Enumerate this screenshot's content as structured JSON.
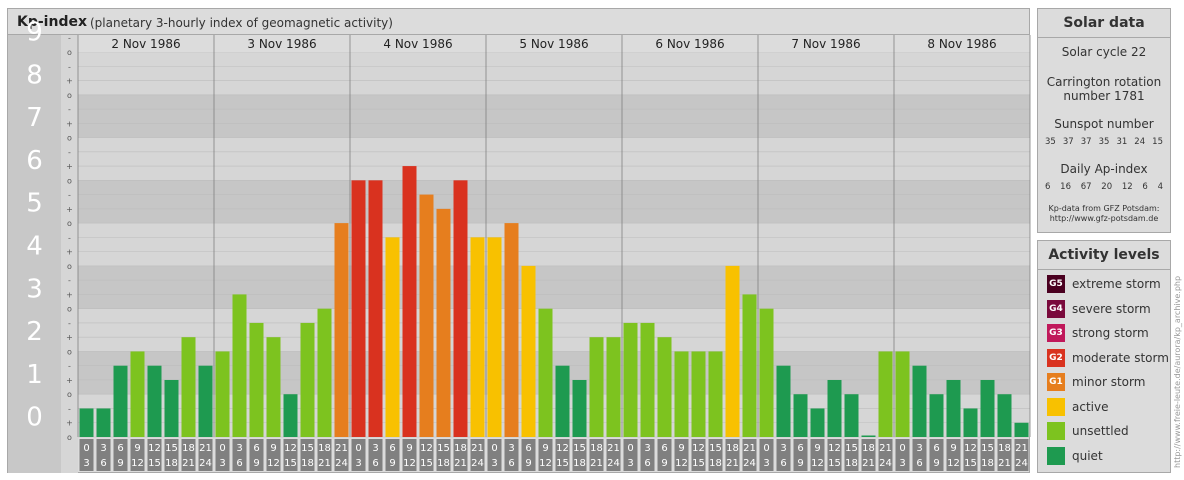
{
  "header": {
    "title": "Kp-index",
    "subtitle": "(planetary 3-hourly index of geomagnetic activity)"
  },
  "chart_data": {
    "type": "bar",
    "ylim": [
      0,
      9
    ],
    "y_ticks": [
      "0",
      "1",
      "2",
      "3",
      "4",
      "5",
      "6",
      "7",
      "8",
      "9"
    ],
    "sub_ticks": [
      "o",
      "-",
      "+"
    ],
    "days": [
      "2 Nov 1986",
      "3 Nov 1986",
      "4 Nov 1986",
      "5 Nov 1986",
      "6 Nov 1986",
      "7 Nov 1986",
      "8 Nov 1986"
    ],
    "interval_start": [
      "0",
      "3",
      "6",
      "9",
      "12",
      "15",
      "18",
      "21"
    ],
    "interval_end": [
      "3",
      "6",
      "9",
      "12",
      "15",
      "18",
      "21",
      "24"
    ],
    "values": [
      0.667,
      0.667,
      1.667,
      2.0,
      1.667,
      1.333,
      2.333,
      1.667,
      2.0,
      3.333,
      2.667,
      2.333,
      1.0,
      2.667,
      3.0,
      5.0,
      6.0,
      6.0,
      4.667,
      6.333,
      5.667,
      5.333,
      6.0,
      4.667,
      4.667,
      5.0,
      4.0,
      3.0,
      1.667,
      1.333,
      2.333,
      2.333,
      2.667,
      2.667,
      2.333,
      2.0,
      2.0,
      2.0,
      4.0,
      3.333,
      3.0,
      1.667,
      1.0,
      0.667,
      1.333,
      1.0,
      0.0,
      2.0,
      2.0,
      1.667,
      1.0,
      1.333,
      0.667,
      1.333,
      1.0,
      0.333
    ]
  },
  "colors": {
    "quiet": "#1e9a50",
    "unsettled": "#7dc31f",
    "active": "#f8c100",
    "minor": "#e67e1e",
    "moderate": "#d9321f",
    "strong": "#c0185a",
    "severe": "#7a0a3c",
    "extreme": "#4a0020"
  },
  "solar": {
    "title": "Solar data",
    "cycle": "Solar cycle 22",
    "carrington_1": "Carrington rotation",
    "carrington_2": "number 1781",
    "sunspot_label": "Sunspot number",
    "sunspot_values": [
      "35",
      "37",
      "37",
      "35",
      "31",
      "24",
      "15"
    ],
    "ap_label": "Daily Ap-index",
    "ap_values": [
      "6",
      "16",
      "67",
      "20",
      "12",
      "6",
      "4"
    ],
    "source_1": "Kp-data from GFZ Potsdam:",
    "source_2": "http://www.gfz-potsdam.de"
  },
  "activity": {
    "title": "Activity levels",
    "levels": [
      {
        "badge": "G5",
        "label": "extreme storm",
        "color": "#4a0020"
      },
      {
        "badge": "G4",
        "label": "severe storm",
        "color": "#7a0a3c"
      },
      {
        "badge": "G3",
        "label": "strong storm",
        "color": "#c0185a"
      },
      {
        "badge": "G2",
        "label": "moderate storm",
        "color": "#d9321f"
      },
      {
        "badge": "G1",
        "label": "minor storm",
        "color": "#e67e1e"
      },
      {
        "badge": "",
        "label": "active",
        "color": "#f8c100"
      },
      {
        "badge": "",
        "label": "unsettled",
        "color": "#7dc31f"
      },
      {
        "badge": "",
        "label": "quiet",
        "color": "#1e9a50"
      }
    ]
  },
  "credit": "http://www.freie-leute.de/aurora/kp_archive.php"
}
